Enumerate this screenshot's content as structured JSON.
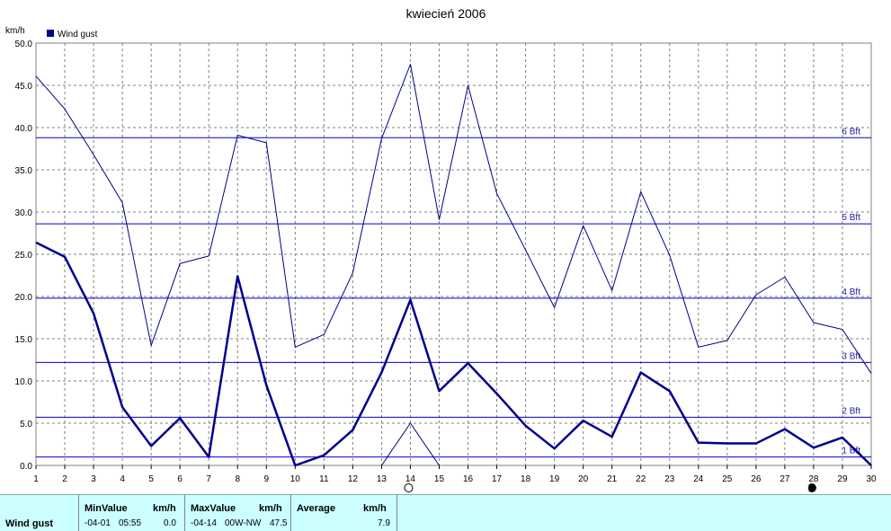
{
  "chart_data": {
    "type": "line",
    "title": "kwiecień 2006",
    "ylabel": "km/h",
    "legend": [
      "Wind gust"
    ],
    "legend_position": "top-left",
    "grid": true,
    "ylim": [
      0,
      50
    ],
    "yticks": [
      "0.0",
      "5.0",
      "10.0",
      "15.0",
      "20.0",
      "25.0",
      "30.0",
      "35.0",
      "40.0",
      "45.0",
      "50.0"
    ],
    "x": [
      1,
      2,
      3,
      4,
      5,
      6,
      7,
      8,
      9,
      10,
      11,
      12,
      13,
      14,
      15,
      16,
      17,
      18,
      19,
      20,
      21,
      22,
      23,
      24,
      25,
      26,
      27,
      28,
      29,
      30
    ],
    "series": [
      {
        "name": "Wind gust",
        "values": [
          26.4,
          24.7,
          18,
          6.9,
          2.3,
          5.6,
          1,
          22.4,
          9.5,
          0,
          1.2,
          4.2,
          11,
          19.6,
          8.8,
          12.1,
          8.5,
          4.7,
          2,
          5.3,
          3.4,
          11,
          8.8,
          2.7,
          2.6,
          2.6,
          4.3,
          2.1,
          3.3,
          0
        ]
      },
      {
        "values": [
          46.1,
          42.2,
          36.8,
          31.1,
          14.2,
          23.9,
          24.8,
          39.1,
          38.2,
          14,
          15.5,
          22.8,
          38.7,
          47.5,
          29.1,
          45,
          32.2,
          25.5,
          18.7,
          28.4,
          20.7,
          32.4,
          24.9,
          14,
          14.8,
          20.2,
          22.3,
          16.9,
          16.1,
          10.9
        ]
      },
      {
        "values": [
          null,
          null,
          null,
          null,
          null,
          null,
          null,
          null,
          null,
          null,
          null,
          null,
          0,
          5,
          0,
          null,
          null,
          null,
          null,
          null,
          null,
          null,
          null,
          null,
          null,
          null,
          null,
          null,
          null,
          null
        ]
      }
    ],
    "reference_lines": [
      {
        "label": "1 Bft",
        "value": 1.0
      },
      {
        "label": "2 Bft",
        "value": 5.7
      },
      {
        "label": "3 Bft",
        "value": 12.2
      },
      {
        "label": "4 Bft",
        "value": 19.8
      },
      {
        "label": "5 Bft",
        "value": 28.6
      },
      {
        "label": "6 Bft",
        "value": 38.8
      }
    ],
    "moon_markers": [
      {
        "day": 14,
        "phase": "full"
      },
      {
        "day": 28,
        "phase": "new"
      }
    ],
    "colors": {
      "series": "#00008b",
      "reference": "#0000cc",
      "grid": "#808080",
      "legend_box": "#00008b",
      "stats_bg": "#ccffff"
    }
  },
  "stats": {
    "series_label": "Wind gust",
    "min": {
      "header": "MinValue",
      "unit": "km/h",
      "date": "-04-01",
      "time": "05:55",
      "value": "0.0"
    },
    "max": {
      "header": "MaxValue",
      "unit": "km/h",
      "date": "-04-14",
      "direction": "00W-NW",
      "value": "47.5"
    },
    "avg": {
      "header": "Average",
      "unit": "km/h",
      "value": "7.9"
    }
  }
}
